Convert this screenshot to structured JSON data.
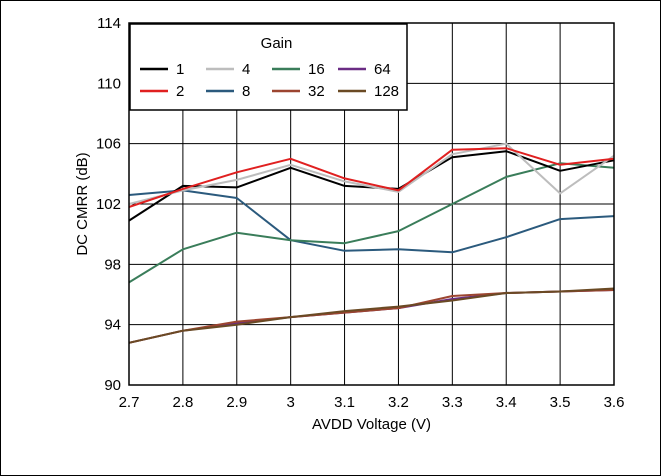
{
  "chart_data": {
    "type": "line",
    "xlabel": "AVDD Voltage (V)",
    "ylabel": "DC CMRR (dB)",
    "xlim": [
      2.7,
      3.6
    ],
    "ylim": [
      90,
      114
    ],
    "x": [
      2.7,
      2.8,
      2.9,
      3.0,
      3.1,
      3.2,
      3.3,
      3.4,
      3.5,
      3.6
    ],
    "x_tick_labels": [
      "2.7",
      "2.8",
      "2.9",
      "3",
      "3.1",
      "3.2",
      "3.3",
      "3.4",
      "3.5",
      "3.6"
    ],
    "y_ticks": [
      90,
      94,
      98,
      102,
      106,
      110,
      114
    ],
    "y_tick_labels": [
      "90",
      "94",
      "98",
      "102",
      "106",
      "110",
      "114"
    ],
    "grid": true,
    "legend": {
      "title": "Gain",
      "placement": "top-left",
      "columns": 4
    },
    "series": [
      {
        "name": "1",
        "color": "#000000",
        "values": [
          100.9,
          103.2,
          103.1,
          104.4,
          103.2,
          103.0,
          105.1,
          105.5,
          104.2,
          104.9
        ]
      },
      {
        "name": "4",
        "color": "#bdbdbd",
        "values": [
          102.0,
          102.9,
          103.6,
          104.6,
          103.5,
          102.8,
          105.3,
          106.0,
          102.7,
          105.2
        ]
      },
      {
        "name": "16",
        "color": "#3a7d5a",
        "values": [
          96.8,
          99.0,
          100.1,
          99.6,
          99.4,
          100.2,
          102.0,
          103.8,
          104.7,
          104.4
        ]
      },
      {
        "name": "64",
        "color": "#6a2c84",
        "values": [
          92.8,
          93.6,
          94.1,
          94.5,
          94.8,
          95.1,
          95.7,
          96.1,
          96.2,
          96.3
        ]
      },
      {
        "name": "2",
        "color": "#e02020",
        "values": [
          101.8,
          103.0,
          104.1,
          105.0,
          103.7,
          102.9,
          105.6,
          105.7,
          104.6,
          105.0
        ]
      },
      {
        "name": "8",
        "color": "#2b5a7d",
        "values": [
          102.6,
          102.9,
          102.4,
          99.6,
          98.9,
          99.0,
          98.8,
          99.8,
          101.0,
          101.2
        ]
      },
      {
        "name": "32",
        "color": "#9c4530",
        "values": [
          92.8,
          93.6,
          94.2,
          94.5,
          94.8,
          95.1,
          95.9,
          96.1,
          96.2,
          96.3
        ]
      },
      {
        "name": "128",
        "color": "#6a4a24",
        "values": [
          92.8,
          93.6,
          94.0,
          94.5,
          94.9,
          95.2,
          95.6,
          96.1,
          96.2,
          96.4
        ]
      }
    ]
  }
}
